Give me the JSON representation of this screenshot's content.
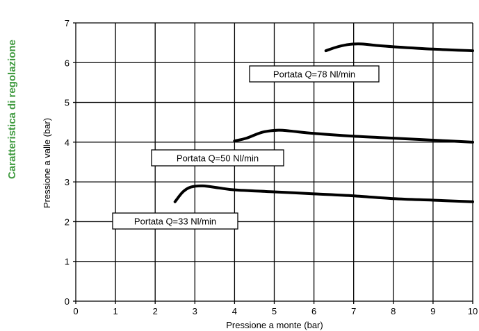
{
  "side_title": "Caratteristica di regolazione",
  "colors": {
    "side_title": "#3f9a3f",
    "grid": "#000000",
    "series": "#000000",
    "background": "#ffffff"
  },
  "chart_data": {
    "type": "line",
    "title": "",
    "xlabel": "Pressione a monte (bar)",
    "ylabel": "Pressione a valle (bar)",
    "xlim": [
      0,
      10
    ],
    "ylim": [
      0,
      7
    ],
    "xticks": [
      "0",
      "1",
      "2",
      "3",
      "4",
      "5",
      "6",
      "7",
      "8",
      "9",
      "10"
    ],
    "yticks": [
      "0",
      "1",
      "2",
      "3",
      "4",
      "5",
      "6",
      "7"
    ],
    "grid": true,
    "series": [
      {
        "name": "Portata Q=33 Nl/min",
        "points": [
          [
            2.5,
            2.5
          ],
          [
            2.7,
            2.75
          ],
          [
            2.9,
            2.87
          ],
          [
            3.2,
            2.9
          ],
          [
            3.6,
            2.85
          ],
          [
            4,
            2.8
          ],
          [
            5,
            2.75
          ],
          [
            6,
            2.7
          ],
          [
            7,
            2.65
          ],
          [
            8,
            2.58
          ],
          [
            9,
            2.54
          ],
          [
            10,
            2.5
          ]
        ]
      },
      {
        "name": "Portata Q=50 Nl/min",
        "points": [
          [
            4,
            4.03
          ],
          [
            4.3,
            4.1
          ],
          [
            4.7,
            4.25
          ],
          [
            5.1,
            4.3
          ],
          [
            5.4,
            4.28
          ],
          [
            6,
            4.22
          ],
          [
            7,
            4.15
          ],
          [
            8,
            4.1
          ],
          [
            9,
            4.05
          ],
          [
            10,
            4.0
          ]
        ]
      },
      {
        "name": "Portata Q=78 Nl/min",
        "points": [
          [
            6.3,
            6.3
          ],
          [
            6.6,
            6.4
          ],
          [
            6.9,
            6.46
          ],
          [
            7.2,
            6.47
          ],
          [
            7.6,
            6.43
          ],
          [
            8,
            6.4
          ],
          [
            9,
            6.34
          ],
          [
            10,
            6.3
          ]
        ]
      }
    ]
  }
}
